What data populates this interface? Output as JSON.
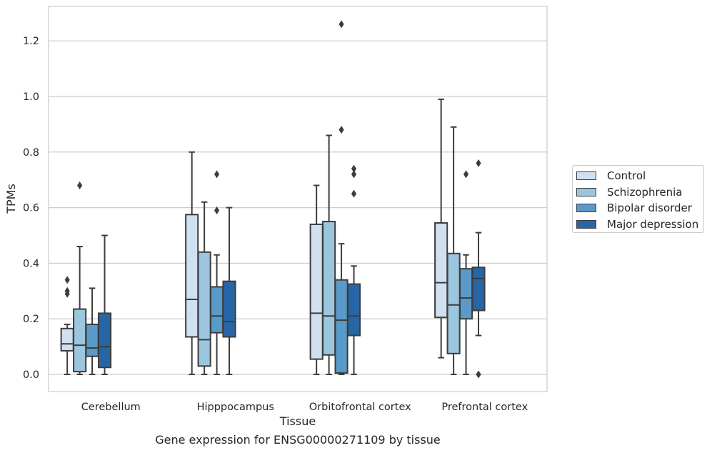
{
  "caption": "Gene expression for ENSG00000271109 by tissue",
  "chart_data": {
    "type": "box",
    "xlabel": "Tissue",
    "ylabel": "TPMs",
    "ylim": [
      -0.06,
      1.32
    ],
    "yticks": [
      "0.0",
      "0.2",
      "0.4",
      "0.6",
      "0.8",
      "1.0",
      "1.2"
    ],
    "grid": "horizontal",
    "legend_position": "center-right",
    "categories": [
      "Cerebellum",
      "Hipppocampus",
      "Orbitofrontal cortex",
      "Prefrontal cortex"
    ],
    "series": [
      {
        "name": "Control",
        "color": "#d0e0f1",
        "boxes": [
          {
            "whislo": 0.0,
            "q1": 0.085,
            "med": 0.11,
            "q3": 0.165,
            "whishi": 0.18,
            "fliers": [
              0.29,
              0.3,
              0.34
            ]
          },
          {
            "whislo": 0.0,
            "q1": 0.135,
            "med": 0.27,
            "q3": 0.575,
            "whishi": 0.8,
            "fliers": []
          },
          {
            "whislo": 0.0,
            "q1": 0.055,
            "med": 0.22,
            "q3": 0.54,
            "whishi": 0.68,
            "fliers": []
          },
          {
            "whislo": 0.06,
            "q1": 0.205,
            "med": 0.33,
            "q3": 0.545,
            "whishi": 0.99,
            "fliers": []
          }
        ]
      },
      {
        "name": "Schizophrenia",
        "color": "#9cc5de",
        "boxes": [
          {
            "whislo": 0.0,
            "q1": 0.01,
            "med": 0.105,
            "q3": 0.235,
            "whishi": 0.46,
            "fliers": [
              0.68
            ]
          },
          {
            "whislo": 0.0,
            "q1": 0.03,
            "med": 0.125,
            "q3": 0.44,
            "whishi": 0.62,
            "fliers": []
          },
          {
            "whislo": 0.0,
            "q1": 0.07,
            "med": 0.21,
            "q3": 0.55,
            "whishi": 0.86,
            "fliers": []
          },
          {
            "whislo": 0.0,
            "q1": 0.075,
            "med": 0.25,
            "q3": 0.435,
            "whishi": 0.89,
            "fliers": []
          }
        ]
      },
      {
        "name": "Bipolar disorder",
        "color": "#5a9ac9",
        "boxes": [
          {
            "whislo": 0.0,
            "q1": 0.065,
            "med": 0.095,
            "q3": 0.18,
            "whishi": 0.31,
            "fliers": []
          },
          {
            "whislo": 0.0,
            "q1": 0.15,
            "med": 0.21,
            "q3": 0.315,
            "whishi": 0.43,
            "fliers": [
              0.59,
              0.72
            ]
          },
          {
            "whislo": 0.0,
            "q1": 0.005,
            "med": 0.195,
            "q3": 0.34,
            "whishi": 0.47,
            "fliers": [
              0.88,
              1.26
            ]
          },
          {
            "whislo": 0.0,
            "q1": 0.2,
            "med": 0.275,
            "q3": 0.38,
            "whishi": 0.43,
            "fliers": [
              0.72
            ]
          }
        ]
      },
      {
        "name": "Major depression",
        "color": "#2666a7",
        "boxes": [
          {
            "whislo": 0.0,
            "q1": 0.025,
            "med": 0.1,
            "q3": 0.22,
            "whishi": 0.5,
            "fliers": []
          },
          {
            "whislo": 0.0,
            "q1": 0.135,
            "med": 0.19,
            "q3": 0.335,
            "whishi": 0.6,
            "fliers": []
          },
          {
            "whislo": 0.0,
            "q1": 0.14,
            "med": 0.21,
            "q3": 0.325,
            "whishi": 0.39,
            "fliers": [
              0.65,
              0.72,
              0.74
            ]
          },
          {
            "whislo": 0.14,
            "q1": 0.23,
            "med": 0.345,
            "q3": 0.385,
            "whishi": 0.51,
            "fliers": [
              0.0,
              0.76
            ]
          }
        ]
      }
    ]
  }
}
